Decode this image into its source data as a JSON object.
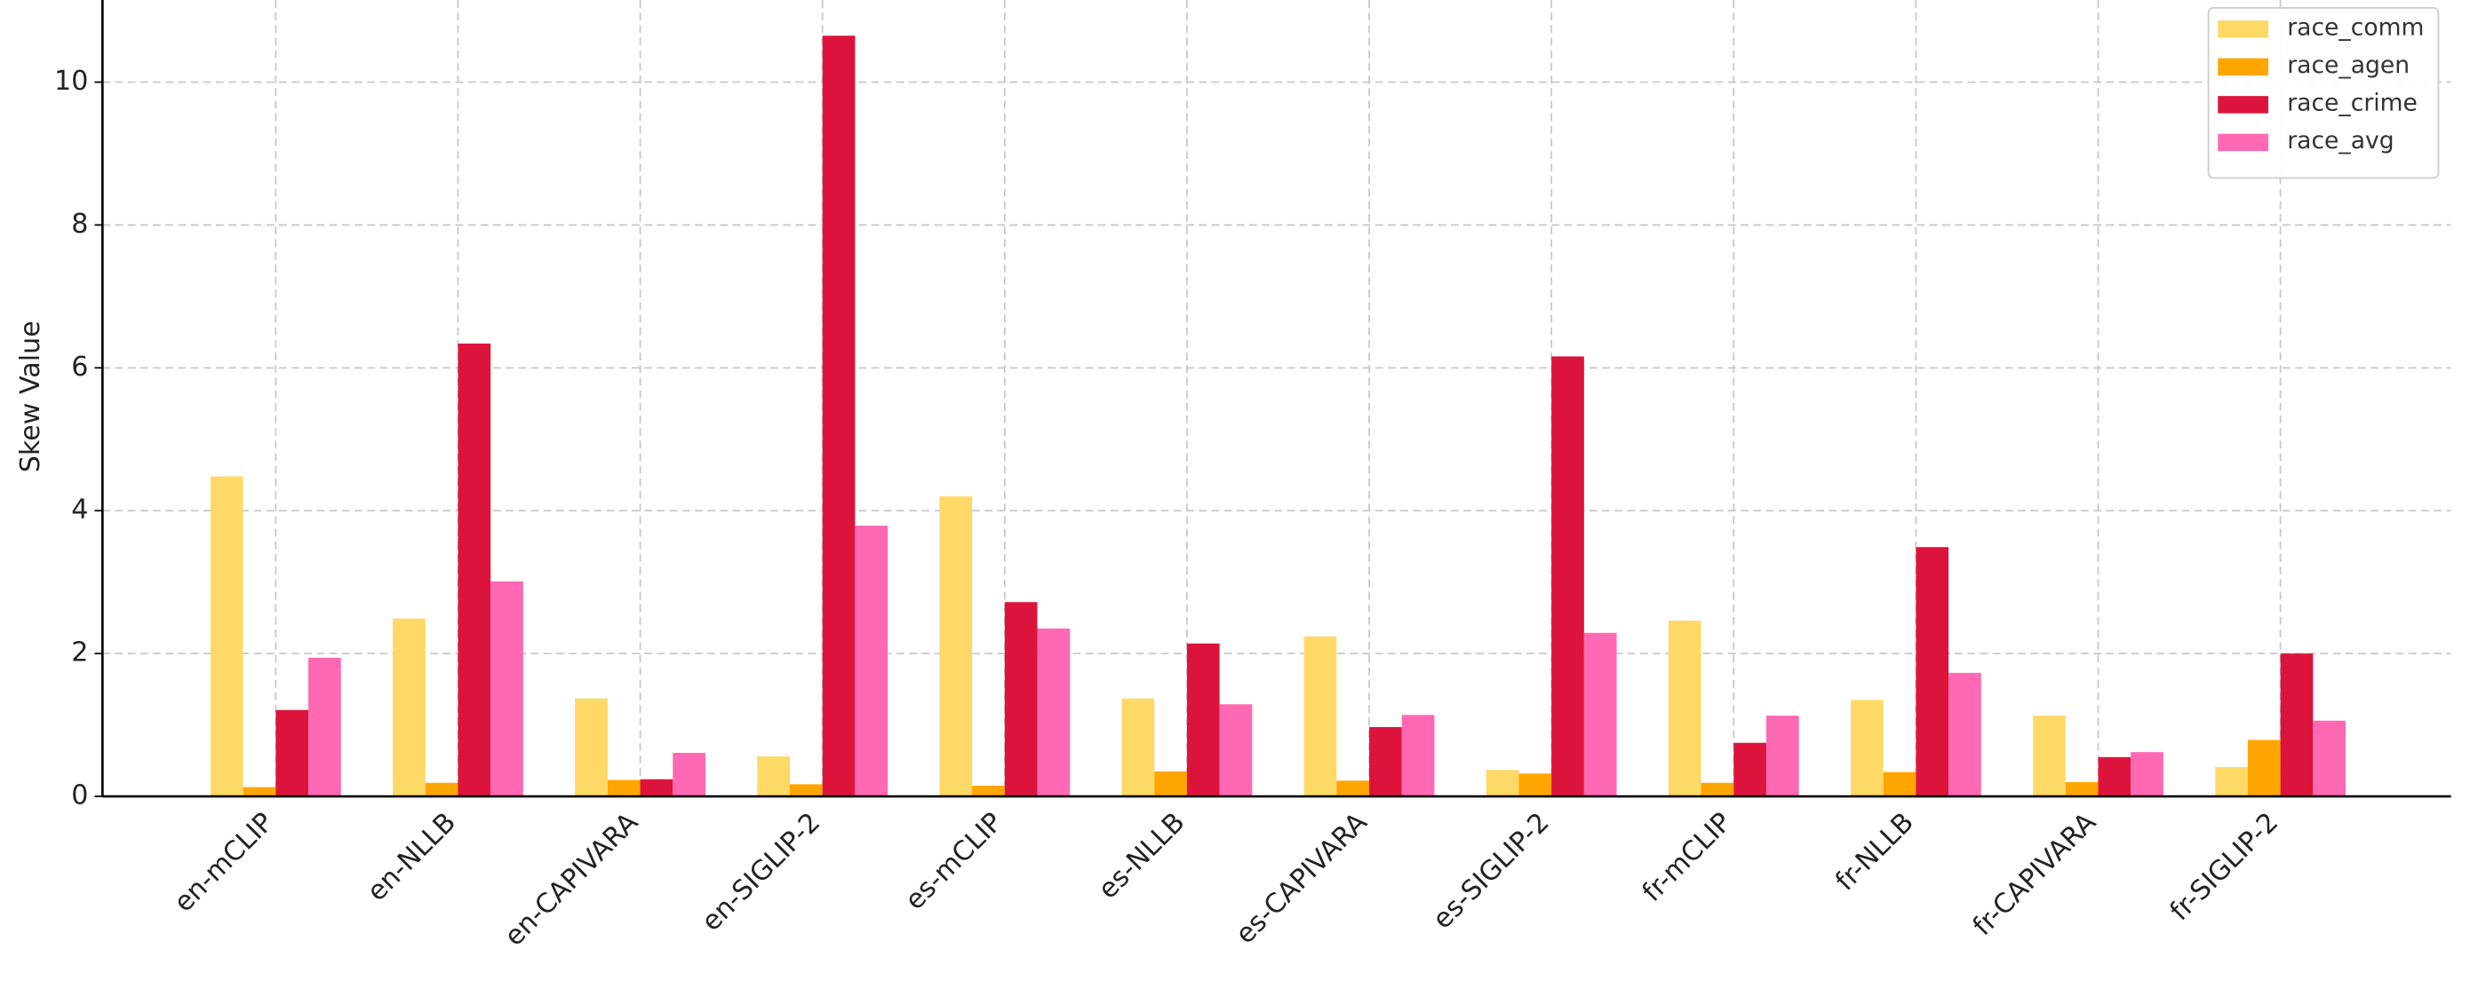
{
  "chart_data": {
    "type": "bar",
    "y_label": "Skew Value",
    "categories": [
      "en-mCLIP",
      "en-NLLB",
      "en-CAPIVARA",
      "en-SIGLIP-2",
      "es-mCLIP",
      "es-NLLB",
      "es-CAPIVARA",
      "es-SIGLIP-2",
      "fr-mCLIP",
      "fr-NLLB",
      "fr-CAPIVARA",
      "fr-SIGLIP-2"
    ],
    "series": [
      {
        "name": "race_comm",
        "color": "#ffd966",
        "values": [
          4.48,
          2.49,
          1.37,
          0.56,
          4.2,
          1.37,
          2.24,
          0.37,
          2.46,
          1.35,
          1.13,
          0.41
        ]
      },
      {
        "name": "race_agen",
        "color": "#ffa500",
        "values": [
          0.13,
          0.19,
          0.23,
          0.17,
          0.15,
          0.35,
          0.22,
          0.32,
          0.19,
          0.34,
          0.2,
          0.79
        ]
      },
      {
        "name": "race_crime",
        "color": "#dc143c",
        "values": [
          1.21,
          6.34,
          0.24,
          10.65,
          2.72,
          2.14,
          0.97,
          6.16,
          0.75,
          3.49,
          0.55,
          2.0
        ]
      },
      {
        "name": "race_avg",
        "color": "#ff69b4",
        "values": [
          1.94,
          3.01,
          0.61,
          3.79,
          2.35,
          1.29,
          1.14,
          2.29,
          1.13,
          1.73,
          0.62,
          1.06
        ]
      }
    ],
    "ylim": [
      0,
      11.15
    ],
    "yticks": [
      0,
      2,
      4,
      6,
      8,
      10
    ],
    "grid": true,
    "legend": "upper right"
  }
}
